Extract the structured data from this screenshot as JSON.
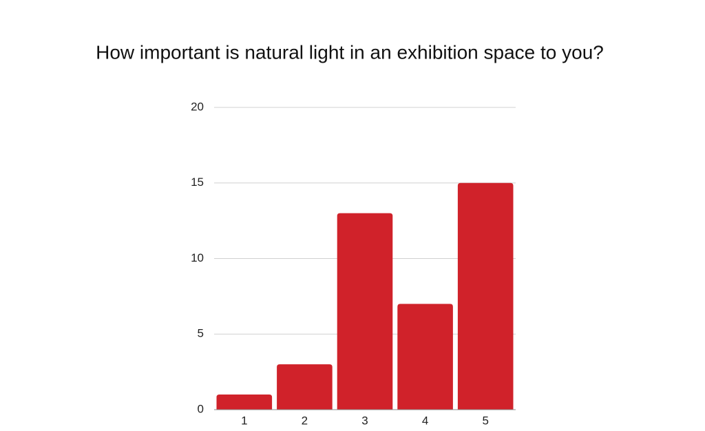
{
  "chart_data": {
    "type": "bar",
    "title": "How important is natural light in an exhibition space to you?",
    "categories": [
      "1",
      "2",
      "3",
      "4",
      "5"
    ],
    "values": [
      1,
      3,
      13,
      7,
      15
    ],
    "color": "#d0222a",
    "ylim": [
      0,
      20
    ],
    "yticks": [
      0,
      5,
      10,
      15,
      20
    ],
    "grid": true
  }
}
